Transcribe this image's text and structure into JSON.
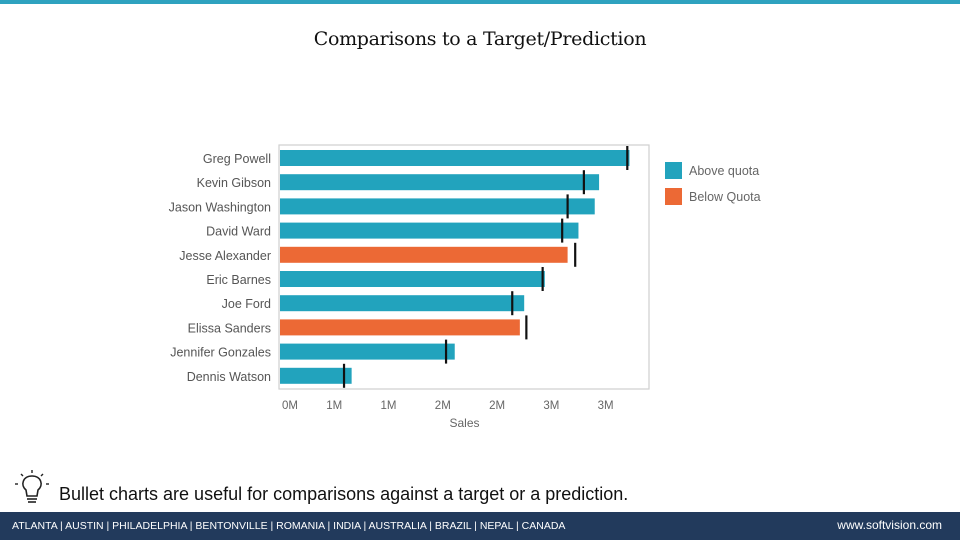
{
  "slide": {
    "title": "Comparisons to a Target/Prediction",
    "caption": "Bullet charts are useful for comparisons against a target or a prediction."
  },
  "footer": {
    "cities": "ATLANTA | AUSTIN | PHILADELPHIA | BENTONVILLE | ROMANIA | INDIA | AUSTRALIA | BRAZIL | NEPAL | CANADA",
    "url": "www.softvision.com"
  },
  "colors": {
    "above": "#22a3bd",
    "below": "#ec6935",
    "target": "#111111",
    "accent": "#2ea2bf",
    "footer": "#223a5c"
  },
  "icons": {
    "caption": "lightbulb-icon"
  },
  "chart_data": {
    "type": "bar",
    "orientation": "horizontal",
    "xlabel": "Sales",
    "xlim": [
      0,
      3.4
    ],
    "tick_values": [
      0,
      0.5,
      1.0,
      1.5,
      2.0,
      2.5,
      3.0
    ],
    "tick_labels": [
      "0M",
      "1M",
      "1M",
      "2M",
      "2M",
      "3M",
      "3M"
    ],
    "legend_position": "right",
    "legend": [
      {
        "label": "Above quota",
        "status": "above"
      },
      {
        "label": "Below Quota",
        "status": "below"
      }
    ],
    "categories": [
      "Greg Powell",
      "Kevin Gibson",
      "Jason Washington",
      "David Ward",
      "Jesse Alexander",
      "Eric Barnes",
      "Joe Ford",
      "Elissa Sanders",
      "Jennifer Gonzales",
      "Dennis Watson"
    ],
    "values": [
      3.22,
      2.94,
      2.9,
      2.75,
      2.65,
      2.44,
      2.25,
      2.21,
      1.61,
      0.66
    ],
    "targets": [
      3.2,
      2.8,
      2.65,
      2.6,
      2.72,
      2.42,
      2.14,
      2.27,
      1.53,
      0.59
    ],
    "status": [
      "above",
      "above",
      "above",
      "above",
      "below",
      "above",
      "above",
      "below",
      "above",
      "above"
    ]
  }
}
